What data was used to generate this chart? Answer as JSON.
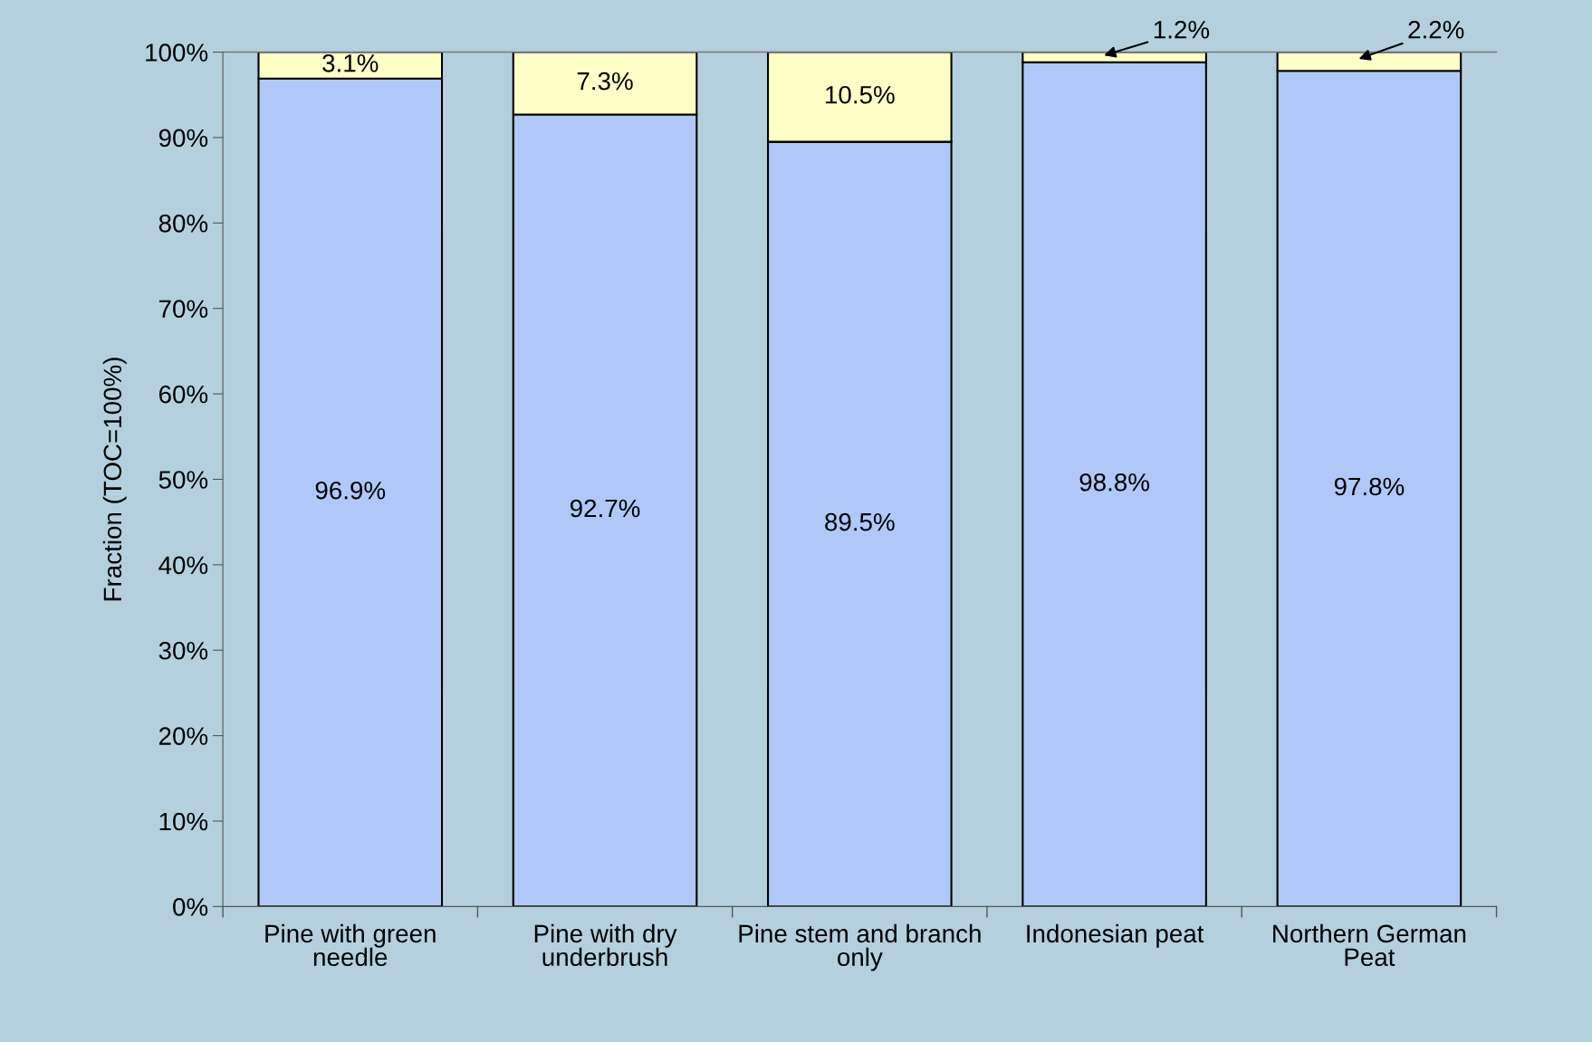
{
  "chart_data": {
    "type": "bar",
    "stacked": true,
    "ylabel": "Fraction (TOC=100%)",
    "categories": [
      "Pine with green needle",
      "Pine with dry underbrush",
      "Pine stem and branch only",
      "Indonesian peat",
      "Northern German Peat"
    ],
    "series": [
      {
        "color": "#b0c8f8",
        "values": [
          96.9,
          92.7,
          89.5,
          98.8,
          97.8
        ],
        "value_labels": [
          "96.9%",
          "92.7%",
          "89.5%",
          "98.8%",
          "97.8%"
        ]
      },
      {
        "color": "#ffffc8",
        "values": [
          3.1,
          7.3,
          10.5,
          1.2,
          2.2
        ],
        "value_labels": [
          "3.1%",
          "7.3%",
          "10.5%",
          "1.2%",
          "2.2%"
        ]
      }
    ],
    "ylim": [
      0,
      100
    ],
    "yticks": [
      {
        "value": 0,
        "label": "0%"
      },
      {
        "value": 10,
        "label": "10%"
      },
      {
        "value": 20,
        "label": "20%"
      },
      {
        "value": 30,
        "label": "30%"
      },
      {
        "value": 40,
        "label": "40%"
      },
      {
        "value": 50,
        "label": "50%"
      },
      {
        "value": 60,
        "label": "60%"
      },
      {
        "value": 70,
        "label": "70%"
      },
      {
        "value": 80,
        "label": "80%"
      },
      {
        "value": 90,
        "label": "90%"
      },
      {
        "value": 100,
        "label": "100%"
      }
    ],
    "grid": false,
    "legend": false
  }
}
